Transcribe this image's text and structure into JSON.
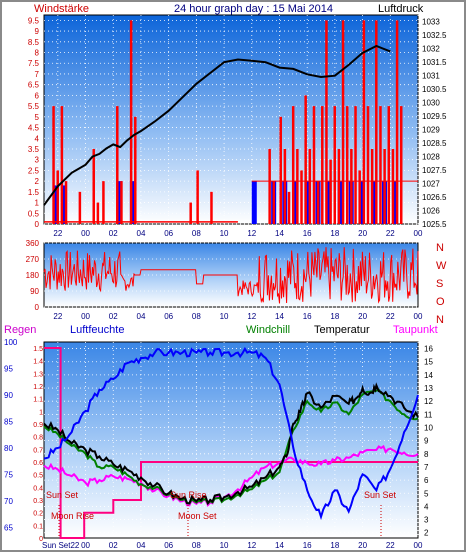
{
  "header": {
    "left_label": "Windstärke",
    "title": "24 hour graph day : 15 Mai 2014",
    "right_label": "Luftdruck"
  },
  "labels": {
    "regen": "Regen",
    "luftfeuchte": "Luftfeuchte",
    "windchill": "Windchill",
    "temperatur": "Temperatur",
    "taupunkt": "Taupunkt",
    "sun_set_left": "Sun Set",
    "moon_rise": "Moon Rise",
    "sun_set_mid": "Sun Rise",
    "moon_set": "Moon Set",
    "sun_set_right": "Sun Set",
    "sun_corner": "Sun Set22"
  },
  "compass": [
    "N",
    "W",
    "S",
    "O",
    "N"
  ],
  "colors": {
    "wind": "#ff0000",
    "gust_low": "#0000ff",
    "pressure": "#000000",
    "direction": "#ff0000",
    "humidity": "#0000ff",
    "temperature": "#000000",
    "windchill": "#008000",
    "dewpoint": "#ff00ff",
    "rain": "#ff0080",
    "regen_label": "#cc00cc",
    "luftfeuchte_label": "#0000cc",
    "windchill_label": "#008000",
    "taupunkt_label": "#ff00ff"
  },
  "chart_data": [
    {
      "type": "bar",
      "name": "wind_pressure",
      "x_ticks": [
        "22",
        "00",
        "02",
        "04",
        "06",
        "08",
        "10",
        "12",
        "14",
        "16",
        "18",
        "20",
        "22",
        "00"
      ],
      "y_left_ticks": [
        "0",
        "0.5",
        "1",
        "1.5",
        "2",
        "2.5",
        "3",
        "3.5",
        "4",
        "4.5",
        "5",
        "5.5",
        "6",
        "6.5",
        "7",
        "7.5",
        "8",
        "8.5",
        "9",
        "9.5"
      ],
      "y_left_range": [
        0,
        9.75
      ],
      "y_right_ticks": [
        "1025.5",
        "1026",
        "1026.5",
        "1027",
        "1027.5",
        "1028",
        "1028.5",
        "1029",
        "1029.5",
        "1030",
        "1030.5",
        "1031",
        "1031.5",
        "1032",
        "1032.5",
        "1033"
      ],
      "y_right_range": [
        1025.5,
        1033.25
      ],
      "pressure": [
        [
          0,
          1026.2
        ],
        [
          1,
          1026.9
        ],
        [
          2,
          1027.4
        ],
        [
          3,
          1027.7
        ],
        [
          3.5,
          1028.0
        ],
        [
          4,
          1028.1
        ],
        [
          4.5,
          1028.3
        ],
        [
          5,
          1028.45
        ],
        [
          5.5,
          1028.35
        ],
        [
          6,
          1028.6
        ],
        [
          6.5,
          1028.8
        ],
        [
          7,
          1028.95
        ],
        [
          8,
          1029.3
        ],
        [
          9,
          1029.7
        ],
        [
          10,
          1030.2
        ],
        [
          11,
          1030.7
        ],
        [
          12,
          1031.1
        ],
        [
          13,
          1031.5
        ],
        [
          14,
          1031.6
        ],
        [
          15,
          1031.55
        ],
        [
          16,
          1031.5
        ],
        [
          17,
          1031.3
        ],
        [
          18,
          1031.25
        ],
        [
          19,
          1031.05
        ],
        [
          20,
          1030.95
        ],
        [
          21,
          1031.0
        ],
        [
          22,
          1031.4
        ],
        [
          23,
          1031.85
        ],
        [
          24,
          1032.1
        ],
        [
          25,
          1031.9
        ]
      ],
      "wind_bars": [
        [
          0.6,
          5.5
        ],
        [
          0.9,
          2.5
        ],
        [
          1.2,
          5.5
        ],
        [
          1.5,
          2
        ],
        [
          2.5,
          1.5
        ],
        [
          3.5,
          3.5
        ],
        [
          3.8,
          1
        ],
        [
          4.2,
          2
        ],
        [
          5.2,
          5.5
        ],
        [
          5.5,
          2
        ],
        [
          6.2,
          9.5
        ],
        [
          6.5,
          5
        ],
        [
          10.5,
          1
        ],
        [
          11,
          2.5
        ],
        [
          12,
          1.5
        ],
        [
          16.2,
          3.5
        ],
        [
          16.5,
          2
        ],
        [
          17,
          5
        ],
        [
          17.3,
          3.5
        ],
        [
          17.6,
          1.5
        ],
        [
          17.9,
          5.5
        ],
        [
          18.2,
          3.5
        ],
        [
          18.5,
          2.5
        ],
        [
          18.8,
          6
        ],
        [
          19.1,
          3.5
        ],
        [
          19.4,
          5.5
        ],
        [
          19.7,
          2
        ],
        [
          20.0,
          5.5
        ],
        [
          20.3,
          9.5
        ],
        [
          20.6,
          3
        ],
        [
          20.9,
          5.5
        ],
        [
          21.2,
          3.5
        ],
        [
          21.5,
          9.5
        ],
        [
          21.8,
          5.5
        ],
        [
          22.1,
          3.5
        ],
        [
          22.4,
          5.5
        ],
        [
          22.7,
          2.5
        ],
        [
          23.0,
          9.5
        ],
        [
          23.3,
          5.5
        ],
        [
          23.6,
          3.5
        ],
        [
          23.9,
          9.5
        ],
        [
          24.2,
          5.5
        ],
        [
          24.5,
          3.5
        ],
        [
          24.8,
          5.5
        ],
        [
          25.1,
          3.5
        ],
        [
          25.4,
          9.5
        ],
        [
          25.7,
          5.5
        ]
      ],
      "gust_low_bars": [
        [
          0.7,
          1.8
        ],
        [
          1.3,
          1.8
        ],
        [
          5.3,
          2
        ],
        [
          6.2,
          2
        ],
        [
          15.0,
          2
        ],
        [
          16.4,
          2
        ],
        [
          17.2,
          2
        ],
        [
          18.0,
          2
        ],
        [
          18.8,
          2
        ],
        [
          19.6,
          2
        ],
        [
          20.4,
          2
        ],
        [
          21.2,
          2
        ],
        [
          22.0,
          2
        ],
        [
          22.8,
          2
        ],
        [
          23.6,
          2
        ],
        [
          24.4,
          2
        ],
        [
          25.2,
          2
        ]
      ]
    },
    {
      "type": "line",
      "name": "wind_direction",
      "y_ticks": [
        "0",
        "90",
        "180",
        "270",
        "360"
      ],
      "y_range": [
        0,
        360
      ],
      "x_ticks": [
        "22",
        "00",
        "02",
        "04",
        "06",
        "08",
        "10",
        "12",
        "14",
        "16",
        "18",
        "20",
        "22",
        "00"
      ]
    },
    {
      "type": "line",
      "name": "weather",
      "x_ticks": [
        "22",
        "00",
        "02",
        "04",
        "06",
        "08",
        "10",
        "12",
        "14",
        "16",
        "18",
        "20",
        "22",
        "00"
      ],
      "humidity_ticks": [
        "65",
        "70",
        "75",
        "80",
        "85",
        "90",
        "95",
        "100"
      ],
      "humidity_range": [
        63,
        100
      ],
      "rain_ticks": [
        "0",
        "0.1",
        "0.2",
        "0.3",
        "0.4",
        "0.5",
        "0.6",
        "0.7",
        "0.8",
        "0.9",
        "1",
        "1.1",
        "1.2",
        "1.3",
        "1.4",
        "1.5"
      ],
      "rain_range": [
        0,
        1.5
      ],
      "temperature_ticks": [
        "2",
        "3",
        "4",
        "5",
        "6",
        "7",
        "8",
        "9",
        "10",
        "11",
        "12",
        "13",
        "14",
        "15",
        "16"
      ],
      "temperature_range": [
        1.6,
        16.5
      ],
      "temperature": [
        [
          0,
          10.3
        ],
        [
          1,
          9.8
        ],
        [
          2,
          8.8
        ],
        [
          3,
          8.3
        ],
        [
          4,
          7.8
        ],
        [
          5,
          7.2
        ],
        [
          6,
          6.8
        ],
        [
          7,
          6.2
        ],
        [
          8,
          5.6
        ],
        [
          9,
          5.0
        ],
        [
          10,
          4.6
        ],
        [
          11,
          4.4
        ],
        [
          12,
          4.5
        ],
        [
          13,
          4.7
        ],
        [
          14,
          5.1
        ],
        [
          15,
          5.5
        ],
        [
          16,
          6.2
        ],
        [
          17,
          7.0
        ],
        [
          17.5,
          7.8
        ],
        [
          18,
          10.3
        ],
        [
          18.5,
          11.2
        ],
        [
          19,
          12.6
        ],
        [
          20,
          11.5
        ],
        [
          21,
          12.4
        ],
        [
          22,
          11.8
        ],
        [
          22.5,
          12.2
        ],
        [
          23,
          13.0
        ],
        [
          23.5,
          12.6
        ],
        [
          24,
          13.2
        ],
        [
          25,
          12.4
        ],
        [
          26,
          11.5
        ],
        [
          27,
          10.8
        ]
      ],
      "windchill": [
        [
          0,
          10.1
        ],
        [
          1,
          9.5
        ],
        [
          2,
          8.6
        ],
        [
          3,
          8.0
        ],
        [
          4,
          7.0
        ],
        [
          5,
          7.0
        ],
        [
          6,
          6.4
        ],
        [
          7,
          5.7
        ],
        [
          8,
          5.4
        ],
        [
          9,
          4.9
        ],
        [
          10,
          4.5
        ],
        [
          11,
          4.3
        ],
        [
          12,
          4.4
        ],
        [
          13,
          4.5
        ],
        [
          14,
          4.9
        ],
        [
          15,
          5.3
        ],
        [
          16,
          6.0
        ],
        [
          17,
          6.6
        ],
        [
          18,
          9.8
        ],
        [
          19,
          12.0
        ],
        [
          20,
          11.2
        ],
        [
          21,
          11.9
        ],
        [
          22,
          11.0
        ],
        [
          23,
          12.5
        ],
        [
          24,
          12.8
        ],
        [
          25,
          12.0
        ],
        [
          26,
          11.0
        ],
        [
          27,
          10.7
        ]
      ],
      "dewpoint": [
        [
          0,
          7.1
        ],
        [
          1,
          6.8
        ],
        [
          2,
          6.3
        ],
        [
          3,
          5.8
        ],
        [
          4,
          6.0
        ],
        [
          5,
          6.3
        ],
        [
          6,
          6.1
        ],
        [
          7,
          5.8
        ],
        [
          8,
          5.2
        ],
        [
          9,
          4.8
        ],
        [
          10,
          4.4
        ],
        [
          11,
          4.2
        ],
        [
          12,
          4.3
        ],
        [
          13,
          4.7
        ],
        [
          14,
          5.3
        ],
        [
          15,
          6.2
        ],
        [
          16,
          7.0
        ],
        [
          17,
          7.3
        ],
        [
          18,
          7.6
        ],
        [
          19,
          7.3
        ],
        [
          20,
          7.2
        ],
        [
          21,
          7.5
        ],
        [
          22,
          7.7
        ],
        [
          23,
          8.1
        ],
        [
          24,
          8.3
        ],
        [
          25,
          8.4
        ],
        [
          26,
          8.1
        ],
        [
          27,
          8.0
        ]
      ],
      "humidity": [
        [
          0,
          78
        ],
        [
          1,
          80
        ],
        [
          2,
          83
        ],
        [
          3,
          87
        ],
        [
          4,
          91
        ],
        [
          5,
          93
        ],
        [
          6,
          96
        ],
        [
          7,
          97
        ],
        [
          8,
          98
        ],
        [
          9,
          98
        ],
        [
          10,
          98
        ],
        [
          11,
          98
        ],
        [
          12,
          98
        ],
        [
          13,
          98
        ],
        [
          14,
          98
        ],
        [
          15,
          98
        ],
        [
          16,
          97
        ],
        [
          17,
          92
        ],
        [
          18,
          80
        ],
        [
          19,
          72
        ],
        [
          20,
          67
        ],
        [
          21,
          72
        ],
        [
          22,
          68
        ],
        [
          23,
          75
        ],
        [
          24,
          72
        ],
        [
          25,
          76
        ],
        [
          26,
          83
        ],
        [
          27,
          90
        ]
      ],
      "rain": [
        [
          0,
          1.5
        ],
        [
          1.2,
          1.5
        ],
        [
          1.2,
          0.0
        ],
        [
          2.9,
          0.0
        ],
        [
          2.9,
          0.2
        ],
        [
          5.0,
          0.2
        ],
        [
          5.0,
          0.3
        ],
        [
          7.0,
          0.3
        ],
        [
          7.0,
          0.6
        ],
        [
          17.5,
          0.6
        ],
        [
          17.5,
          0.6
        ],
        [
          27,
          0.6
        ]
      ]
    }
  ]
}
